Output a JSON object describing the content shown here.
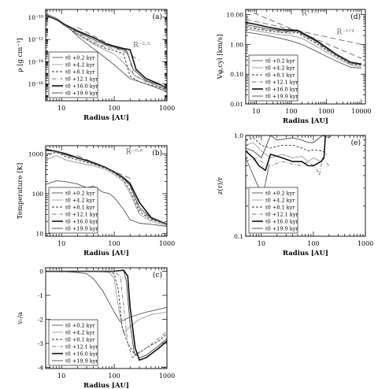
{
  "legend_time_labels": [
    "t0 +0.2 kyr",
    "t0 +4.2 kyr",
    "t0 +8.1 kyr",
    "t0 +12.1 kyr",
    "t0 +16.0 kyr",
    "t0 +19.9 kyr"
  ],
  "style": {
    "series_colors": [
      "#555555",
      "#9a9a9a",
      "#333333",
      "#7a7a7a",
      "#111111",
      "#444444"
    ],
    "series_dash": [
      "",
      "",
      "3,2",
      "5,2,1,2",
      "",
      ""
    ],
    "series_width": [
      0.9,
      0.9,
      0.9,
      0.9,
      1.6,
      0.9
    ],
    "ref_line_color": "#777777"
  },
  "chart_data": [
    {
      "id": "a",
      "type": "line",
      "panel_label": "(a)",
      "xlabel": "Radius [AU]",
      "ylabel": "ρ [g cm⁻³]",
      "xscale": "log",
      "yscale": "log",
      "xlim": [
        5,
        1000
      ],
      "ylim": [
        3e-18,
        5e-10
      ],
      "xticks": [
        10,
        100,
        1000
      ],
      "xtick_labels": [
        "10",
        "100",
        "1000"
      ],
      "yticks": [
        1e-16,
        1e-14,
        1e-12,
        1e-10
      ],
      "ytick_labels": [
        "10⁻¹⁶",
        "10⁻¹⁴",
        "10⁻¹²",
        "10⁻¹⁰"
      ],
      "legend_position": "lower-left",
      "annotation": {
        "text": "R⁻²·⁵",
        "x": 330,
        "y": 2e-13
      },
      "reference_line": {
        "x": [
          20,
          300
        ],
        "y": [
          1.2e-11,
          1.4e-14
        ]
      },
      "series": [
        {
          "x": [
            5,
            8,
            12,
            20,
            40,
            70,
            100,
            200,
            400,
            1000
          ],
          "y": [
            2e-10,
            8e-11,
            2e-11,
            2e-12,
            1.5e-13,
            2e-14,
            5e-15,
            3e-16,
            1e-16,
            2e-17
          ]
        },
        {
          "x": [
            5,
            8,
            12,
            20,
            40,
            70,
            100,
            150,
            250,
            500,
            1000
          ],
          "y": [
            1.5e-10,
            6e-11,
            1.5e-11,
            3e-12,
            4e-13,
            1e-13,
            5e-14,
            8e-15,
            5e-16,
            1.2e-16,
            3e-17
          ]
        },
        {
          "x": [
            5,
            8,
            12,
            20,
            40,
            70,
            100,
            150,
            200,
            300,
            600,
            1000
          ],
          "y": [
            1.5e-10,
            6e-11,
            1.5e-11,
            3e-12,
            5e-13,
            1.5e-13,
            1e-13,
            5e-14,
            5e-16,
            1.5e-16,
            6e-17,
            3e-17
          ]
        },
        {
          "x": [
            5,
            8,
            12,
            20,
            40,
            70,
            100,
            180,
            230,
            350,
            700,
            1000
          ],
          "y": [
            1.5e-10,
            6e-11,
            1.5e-11,
            4e-12,
            7e-13,
            2e-13,
            1.5e-13,
            8e-14,
            8e-16,
            2e-16,
            6e-17,
            4e-17
          ]
        },
        {
          "x": [
            5,
            8,
            12,
            20,
            40,
            70,
            100,
            150,
            200,
            260,
            400,
            700,
            1000
          ],
          "y": [
            1.5e-10,
            6e-11,
            2e-11,
            6e-12,
            1.5e-12,
            4e-13,
            2.5e-13,
            1.5e-13,
            1.2e-13,
            2e-15,
            3e-16,
            1e-16,
            4e-17
          ]
        },
        {
          "x": [
            5,
            8,
            12,
            20,
            40,
            70,
            100,
            170,
            230,
            400,
            1000
          ],
          "y": [
            1.5e-10,
            6e-11,
            1.8e-11,
            5e-12,
            1e-12,
            3e-13,
            2e-13,
            1e-13,
            2e-15,
            2e-16,
            5e-17
          ]
        }
      ]
    },
    {
      "id": "d",
      "type": "line",
      "panel_label": "(d)",
      "xlabel": "Radius [AU]",
      "ylabel": "Vφ,cyl [km/s]",
      "xscale": "log",
      "yscale": "log",
      "xlim": [
        5,
        13000
      ],
      "ylim": [
        0.01,
        15
      ],
      "xticks": [
        10,
        100,
        1000,
        10000
      ],
      "xtick_labels": [
        "10",
        "100",
        "1000",
        "10000"
      ],
      "yticks": [
        0.01,
        0.1,
        1,
        10
      ],
      "ytick_labels": [
        "0.01",
        "0.10",
        "1.00",
        "10.00"
      ],
      "legend_position": "lower-left",
      "annotations": [
        {
          "text": "R⁻¹ᐟ²",
          "x": 350,
          "y": 9.5
        },
        {
          "text": "R⁻¹ᐟ⁴",
          "x": 3500,
          "y": 2.2
        }
      ],
      "reference_lines": [
        {
          "x": [
            5,
            10000
          ],
          "y": [
            15,
            0.34
          ]
        },
        {
          "x": [
            5,
            10000
          ],
          "y": [
            7,
            1.0
          ]
        }
      ],
      "series": [
        {
          "x": [
            5,
            10,
            20,
            50,
            100,
            200,
            500,
            1000,
            2000,
            5000,
            10000
          ],
          "y": [
            2.6,
            2.3,
            2.0,
            1.6,
            1.3,
            1.0,
            0.6,
            0.4,
            0.27,
            0.17,
            0.16
          ]
        },
        {
          "x": [
            5,
            10,
            20,
            50,
            100,
            200,
            500,
            1000,
            2000,
            5000,
            10000
          ],
          "y": [
            3.3,
            2.9,
            2.5,
            2.1,
            2.0,
            1.6,
            0.9,
            0.55,
            0.35,
            0.2,
            0.18
          ]
        },
        {
          "x": [
            5,
            10,
            20,
            50,
            100,
            150,
            200,
            500,
            1000,
            2000,
            5000,
            10000
          ],
          "y": [
            3.7,
            3.3,
            2.9,
            2.5,
            2.4,
            2.5,
            2.0,
            1.1,
            0.65,
            0.4,
            0.22,
            0.2
          ]
        },
        {
          "x": [
            5,
            10,
            20,
            50,
            100,
            150,
            200,
            500,
            1000,
            2000,
            5000,
            10000
          ],
          "y": [
            4.1,
            3.6,
            3.1,
            2.7,
            2.6,
            2.7,
            2.2,
            1.2,
            0.7,
            0.42,
            0.23,
            0.21
          ]
        },
        {
          "x": [
            5,
            10,
            20,
            50,
            100,
            150,
            200,
            500,
            1000,
            2000,
            5000,
            10000
          ],
          "y": [
            5.5,
            4.7,
            3.9,
            3.2,
            3.0,
            3.0,
            2.5,
            1.4,
            0.8,
            0.45,
            0.25,
            0.22
          ]
        },
        {
          "x": [
            5,
            10,
            20,
            50,
            100,
            150,
            200,
            500,
            1000,
            2000,
            5000,
            10000
          ],
          "y": [
            4.6,
            4.0,
            3.4,
            2.9,
            2.8,
            2.85,
            2.3,
            1.3,
            0.75,
            0.43,
            0.24,
            0.21
          ]
        }
      ]
    },
    {
      "id": "b",
      "type": "line",
      "panel_label": "(b)",
      "xlabel": "Radius [AU]",
      "ylabel": "Temperature [K]",
      "xscale": "log",
      "yscale": "log",
      "xlim": [
        5,
        1000
      ],
      "ylim": [
        8.5,
        1600
      ],
      "xticks": [
        10,
        100,
        1000
      ],
      "xtick_labels": [
        "10",
        "100",
        "1000"
      ],
      "yticks": [
        10,
        100,
        1000
      ],
      "ytick_labels": [
        "10",
        "100",
        "1000"
      ],
      "legend_position": "lower-left",
      "annotation": {
        "text": "R⁻⁰·⁶",
        "x": 240,
        "y": 1000
      },
      "reference_line": {
        "x": [
          20,
          220
        ],
        "y": [
          900,
          230
        ]
      },
      "series": [
        {
          "x": [
            5,
            8,
            12,
            20,
            30,
            40,
            60,
            80,
            100,
            150,
            200,
            300,
            500,
            1000
          ],
          "y": [
            170,
            210,
            200,
            175,
            140,
            155,
            110,
            100,
            80,
            40,
            22,
            18,
            17,
            15
          ]
        },
        {
          "x": [
            5,
            8,
            12,
            20,
            40,
            70,
            100,
            150,
            200,
            300,
            500,
            1000
          ],
          "y": [
            700,
            900,
            700,
            600,
            500,
            400,
            300,
            200,
            100,
            30,
            20,
            16
          ]
        },
        {
          "x": [
            5,
            8,
            12,
            20,
            40,
            70,
            100,
            150,
            200,
            300,
            500,
            1000
          ],
          "y": [
            900,
            1100,
            850,
            700,
            550,
            430,
            330,
            220,
            120,
            35,
            22,
            17
          ]
        },
        {
          "x": [
            5,
            8,
            12,
            20,
            40,
            70,
            100,
            150,
            200,
            300,
            500,
            1000
          ],
          "y": [
            1000,
            1100,
            900,
            750,
            600,
            450,
            350,
            250,
            150,
            40,
            23,
            17
          ]
        },
        {
          "x": [
            5,
            8,
            12,
            20,
            40,
            70,
            100,
            150,
            200,
            300,
            500,
            1000
          ],
          "y": [
            1300,
            1150,
            1000,
            800,
            600,
            450,
            350,
            250,
            180,
            60,
            25,
            17
          ]
        },
        {
          "x": [
            5,
            8,
            12,
            20,
            40,
            70,
            100,
            150,
            200,
            300,
            500,
            1000
          ],
          "y": [
            1200,
            1150,
            950,
            780,
            580,
            440,
            340,
            240,
            160,
            45,
            24,
            17
          ]
        }
      ]
    },
    {
      "id": "e",
      "type": "line",
      "panel_label": "(e)",
      "xlabel": "Radius [AU]",
      "ylabel": "z(r)/r",
      "xscale": "log",
      "yscale": "log",
      "xlim": [
        5,
        1000
      ],
      "ylim": [
        0.1,
        1.0
      ],
      "xticks": [
        10,
        100,
        1000
      ],
      "xtick_labels": [
        "10",
        "100",
        "1000"
      ],
      "yticks": [
        0.1,
        1.0
      ],
      "ytick_labels": [
        "0.1",
        "1.0"
      ],
      "legend_position": "lower-left",
      "series": [
        {
          "x": [
            5,
            7,
            9,
            11,
            14
          ],
          "y": [
            0.6,
            0.4,
            0.3,
            0.27,
            0.5
          ]
        },
        {
          "x": [
            5,
            7,
            10,
            15,
            25,
            40,
            60,
            80,
            100,
            140
          ],
          "y": [
            0.8,
            0.85,
            0.7,
            0.6,
            0.65,
            0.6,
            0.62,
            0.55,
            0.6,
            0.55
          ]
        },
        {
          "x": [
            5,
            7,
            10,
            15,
            25,
            40,
            60,
            80,
            100,
            150,
            180
          ],
          "y": [
            0.9,
            0.95,
            0.8,
            0.75,
            0.8,
            0.8,
            0.75,
            0.7,
            0.72,
            0.7,
            0.65
          ]
        },
        {
          "x": [
            5,
            7,
            10,
            15,
            25,
            40,
            60,
            80,
            100,
            120,
            130,
            150,
            200
          ],
          "y": [
            0.55,
            0.6,
            0.55,
            0.5,
            0.55,
            0.52,
            0.5,
            0.55,
            0.5,
            0.45,
            0.4,
            0.6,
            0.5
          ]
        },
        {
          "x": [
            5,
            7,
            9,
            12,
            15,
            25,
            40,
            60,
            80,
            100,
            140,
            160,
            170
          ],
          "y": [
            0.7,
            0.6,
            0.5,
            0.45,
            0.65,
            0.6,
            0.55,
            0.55,
            0.5,
            0.5,
            0.55,
            0.6,
            1.0
          ]
        },
        {
          "x": [
            5,
            7,
            10,
            15,
            20,
            40,
            60,
            80,
            100,
            150,
            200,
            220
          ],
          "y": [
            0.75,
            0.7,
            0.6,
            1.0,
            0.9,
            0.95,
            0.9,
            0.85,
            0.85,
            1.0,
            0.95,
            1.0
          ]
        }
      ]
    },
    {
      "id": "c",
      "type": "line",
      "panel_label": "(c)",
      "xlabel": "Radius [AU]",
      "ylabel": "vᵣ/a",
      "xscale": "log",
      "yscale": "linear",
      "xlim": [
        5,
        1000
      ],
      "ylim": [
        -4.05,
        0.15
      ],
      "xticks": [
        10,
        100,
        1000
      ],
      "xtick_labels": [
        "10",
        "100",
        "1000"
      ],
      "yticks": [
        -4,
        -3,
        -2,
        -1,
        0
      ],
      "ytick_labels": [
        "-4",
        "-3",
        "-2",
        "-1",
        "0"
      ],
      "legend_position": "lower-left",
      "series": [
        {
          "x": [
            5,
            10,
            20,
            30,
            40,
            60,
            80,
            100,
            130,
            200,
            400,
            1000
          ],
          "y": [
            0,
            0,
            -0.05,
            -0.1,
            -0.3,
            -0.8,
            -1.3,
            -1.7,
            -2.1,
            -1.9,
            -1.7,
            -1.5
          ]
        },
        {
          "x": [
            5,
            20,
            50,
            80,
            100,
            120,
            150,
            200,
            300,
            500,
            1000
          ],
          "y": [
            0,
            0,
            0,
            -0.05,
            -0.3,
            -1.5,
            -2.6,
            -2.3,
            -2.0,
            -1.8,
            -1.7
          ]
        },
        {
          "x": [
            5,
            20,
            50,
            80,
            100,
            120,
            140,
            180,
            250,
            400,
            700,
            1000
          ],
          "y": [
            0,
            0,
            0,
            0,
            -0.1,
            -0.8,
            -2.3,
            -3.0,
            -3.5,
            -3.2,
            -2.9,
            -2.6
          ]
        },
        {
          "x": [
            5,
            20,
            50,
            80,
            100,
            130,
            150,
            180,
            220,
            280,
            400,
            700,
            1000
          ],
          "y": [
            0,
            0,
            0,
            0,
            0,
            -0.2,
            -1.4,
            -3.0,
            -3.6,
            -3.4,
            -3.2,
            -2.8,
            -2.5
          ]
        },
        {
          "x": [
            5,
            20,
            50,
            80,
            100,
            150,
            180,
            200,
            250,
            300,
            400,
            700,
            1000
          ],
          "y": [
            0,
            0,
            0,
            0,
            0,
            0.05,
            -0.2,
            -1.5,
            -3.2,
            -3.7,
            -3.6,
            -3.2,
            -2.9
          ]
        },
        {
          "x": [
            5,
            20,
            50,
            80,
            100,
            150,
            170,
            200,
            240,
            300,
            400,
            700,
            1000
          ],
          "y": [
            0,
            0,
            0,
            0,
            0,
            0.03,
            -0.4,
            -2.2,
            -3.4,
            -3.6,
            -3.5,
            -3.1,
            -2.8
          ]
        }
      ]
    }
  ]
}
